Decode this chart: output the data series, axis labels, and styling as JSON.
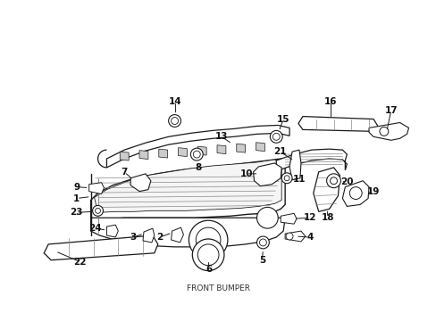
{
  "bg_color": "#ffffff",
  "line_color": "#1a1a1a",
  "text_color": "#111111",
  "figsize": [
    4.89,
    3.6
  ],
  "dpi": 100
}
